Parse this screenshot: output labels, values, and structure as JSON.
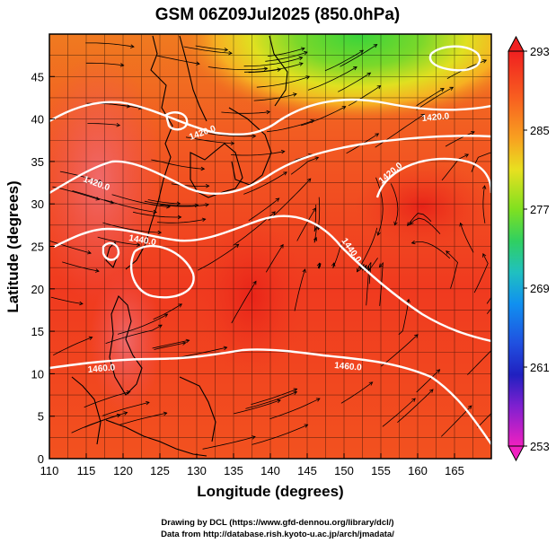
{
  "title": "GSM 06Z09Jul2025 (850.0hPa)",
  "xlabel": "Longitude (degrees)",
  "ylabel": "Latitude (degrees)",
  "credit_lines": [
    "Drawing by DCL (https://www.gfd-dennou.org/library/dcl/)",
    "Data from http://database.rish.kyoto-u.ac.jp/arch/jmadata/"
  ],
  "colorbar": {
    "labels": [
      "293",
      "285",
      "277",
      "269",
      "261",
      "253"
    ]
  },
  "chart_data": {
    "type": "heatmap",
    "title": "GSM 06Z09Jul2025 (850.0hPa)",
    "xlabel": "Longitude (degrees)",
    "ylabel": "Latitude (degrees)",
    "xlim": [
      110,
      170
    ],
    "ylim": [
      0,
      50
    ],
    "x_ticks": [
      "110",
      "115",
      "120",
      "125",
      "130",
      "135",
      "140",
      "145",
      "150",
      "155",
      "160",
      "165"
    ],
    "y_ticks": [
      "0",
      "5",
      "10",
      "15",
      "20",
      "25",
      "30",
      "35",
      "40",
      "45"
    ],
    "colorbar_range": [
      253,
      293
    ],
    "colorbar_ticks": [
      293,
      285,
      277,
      269,
      261,
      253
    ],
    "colormap": [
      "#e020c0",
      "#6020e0",
      "#2030d0",
      "#1080f0",
      "#20c0e0",
      "#30d0a0",
      "#40d040",
      "#9ae020",
      "#e8e020",
      "#f8b020",
      "#f87020",
      "#f03020"
    ],
    "contour_labels": [
      "1420.0",
      "1420.0",
      "1420.0",
      "1420.0",
      "1440.0",
      "1440.0",
      "1460.0",
      "1460.0"
    ],
    "overlays": [
      "temperature shading",
      "geopotential height contours",
      "wind streamlines",
      "coastlines",
      "grid"
    ]
  }
}
